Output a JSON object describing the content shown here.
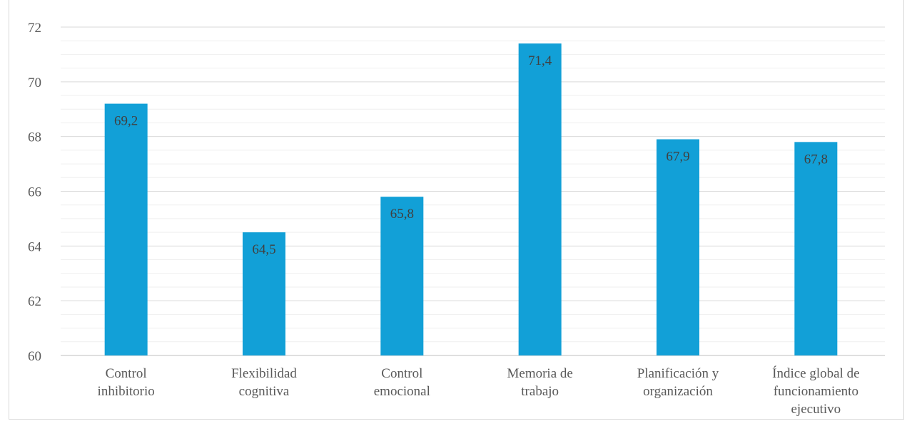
{
  "chart_data": {
    "type": "bar",
    "categories": [
      [
        "Control",
        "inhibitorio"
      ],
      [
        "Flexibilidad",
        "cognitiva"
      ],
      [
        "Control",
        "emocional"
      ],
      [
        "Memoria de",
        "trabajo"
      ],
      [
        "Planificación y",
        "organización"
      ],
      [
        "Índice global de",
        "funcionamiento",
        "ejecutivo"
      ]
    ],
    "values": [
      69.2,
      64.5,
      65.8,
      71.4,
      67.9,
      67.8
    ],
    "data_labels": [
      "69,2",
      "64,5",
      "65,8",
      "71,4",
      "67,9",
      "67,8"
    ],
    "ylim": [
      60,
      72
    ],
    "yticks": [
      60,
      62,
      64,
      66,
      68,
      70,
      72
    ],
    "title": "",
    "xlabel": "",
    "ylabel": "",
    "grid": true,
    "colors": {
      "bar": "#12a0d7",
      "gridline": "#d9d9d9",
      "minor_gridline": "#efefef",
      "axis": "#bfbfbf"
    }
  }
}
